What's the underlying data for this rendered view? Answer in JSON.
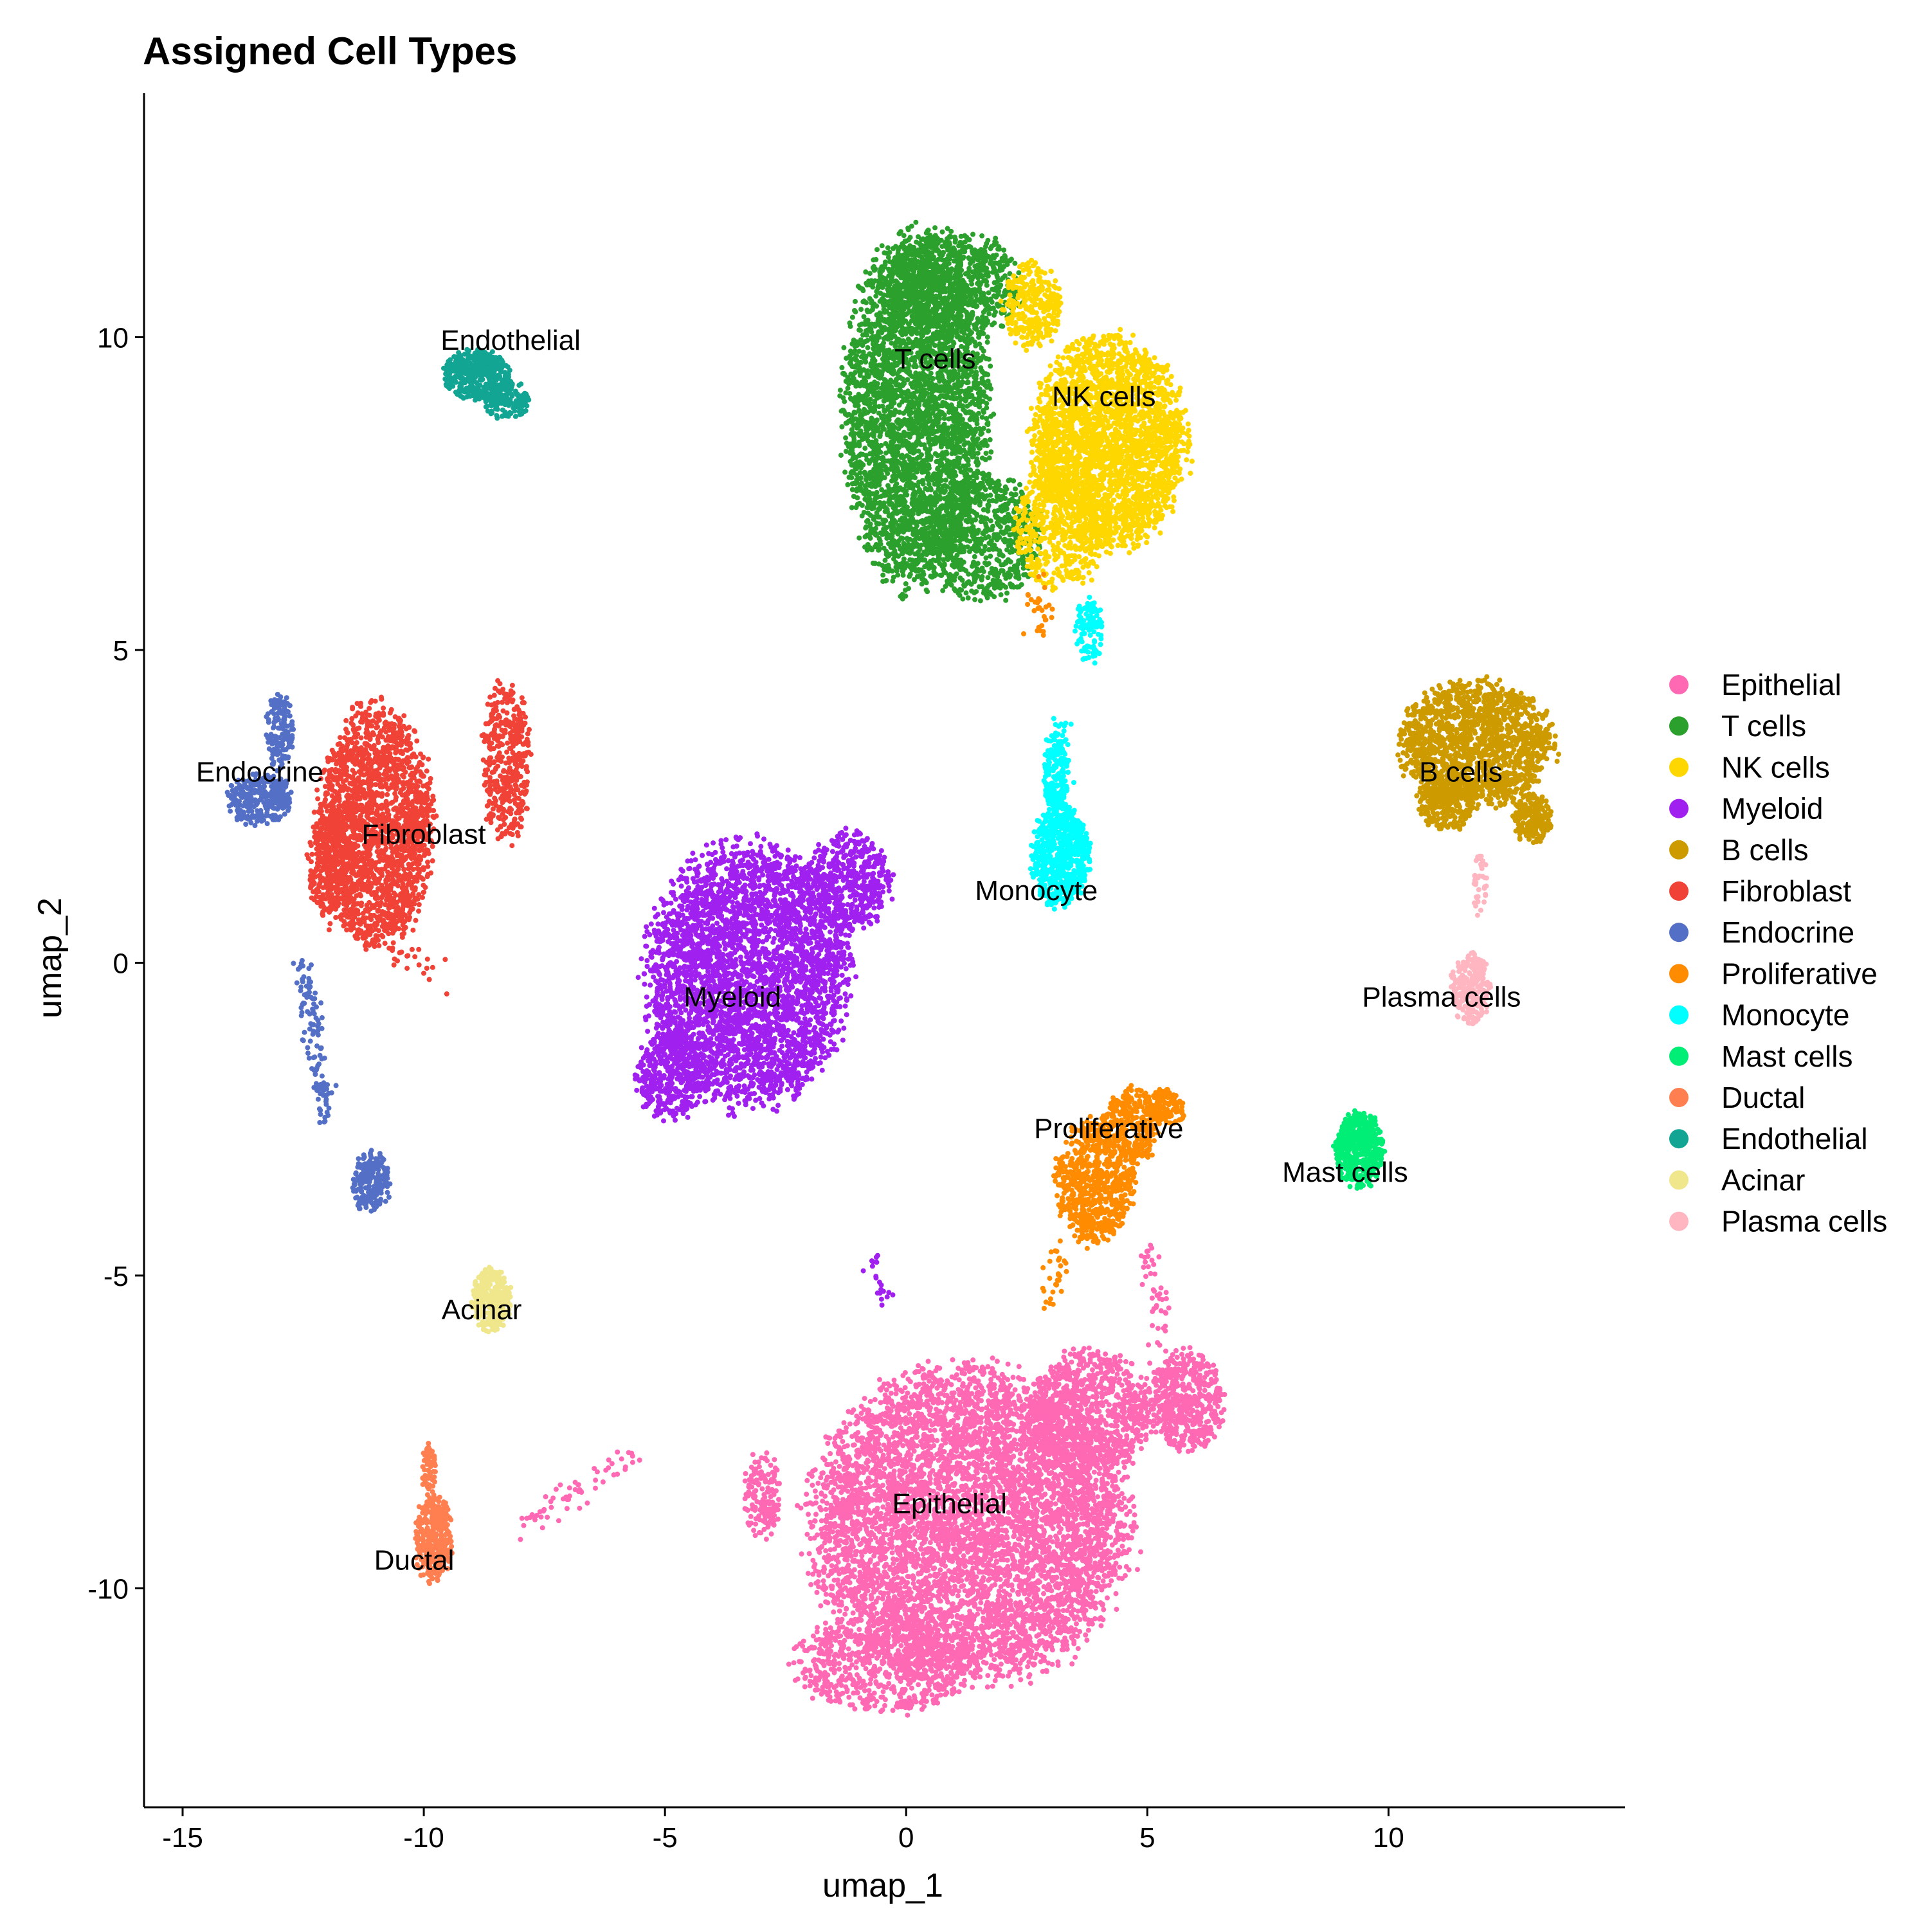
{
  "chart_data": {
    "type": "scatter",
    "title": "Assigned Cell Types",
    "xlabel": "umap_1",
    "ylabel": "umap_2",
    "xlim": [
      -15.8,
      14.9
    ],
    "ylim": [
      -13.5,
      13.9
    ],
    "xticks": [
      -15,
      -10,
      -5,
      0,
      5,
      10
    ],
    "yticks": [
      10,
      5,
      0,
      -5,
      -10
    ],
    "xtick_labels": [
      "-15",
      "-10",
      "-5",
      "0",
      "5",
      "10"
    ],
    "ytick_labels": [
      "10",
      "5",
      "0",
      "-5",
      "-10"
    ],
    "grid": false,
    "legend_position": "right",
    "series": [
      {
        "name": "Epithelial",
        "color": "#FF69B4",
        "label_pos": [
          0.9,
          -8.8
        ],
        "blobs": [
          [
            1.3,
            -9.0,
            3.3,
            2.5,
            6000
          ],
          [
            3.8,
            -7.2,
            1.3,
            1.0,
            900
          ],
          [
            5.8,
            -7.0,
            0.8,
            0.8,
            500
          ],
          [
            -0.5,
            -11.2,
            1.8,
            0.8,
            700
          ],
          [
            -3.0,
            -8.5,
            0.4,
            0.7,
            150
          ]
        ],
        "paths": [
          [
            -8.0,
            -9.0,
            -5.5,
            -7.8,
            60
          ],
          [
            5.0,
            -4.5,
            5.5,
            -7.0,
            60
          ]
        ]
      },
      {
        "name": "T cells",
        "color": "#2CA02C",
        "label_pos": [
          0.6,
          9.5
        ],
        "blobs": [
          [
            0.2,
            8.8,
            1.5,
            2.8,
            3500
          ],
          [
            0.9,
            10.8,
            1.5,
            0.9,
            800
          ],
          [
            1.6,
            6.8,
            1.2,
            1.0,
            700
          ]
        ],
        "paths": []
      },
      {
        "name": "NK cells",
        "color": "#FFD700",
        "label_pos": [
          4.1,
          8.9
        ],
        "blobs": [
          [
            4.2,
            8.3,
            1.6,
            1.7,
            2600
          ],
          [
            3.2,
            7.0,
            1.0,
            1.0,
            500
          ],
          [
            2.6,
            10.5,
            0.6,
            0.7,
            300
          ]
        ],
        "paths": []
      },
      {
        "name": "Myeloid",
        "color": "#A020F0",
        "label_pos": [
          -3.6,
          -0.7
        ],
        "blobs": [
          [
            -3.3,
            -0.2,
            2.1,
            2.1,
            3500
          ],
          [
            -1.2,
            1.3,
            0.9,
            0.8,
            500
          ],
          [
            -4.9,
            -1.8,
            0.7,
            0.7,
            400
          ]
        ],
        "paths": [
          [
            -0.7,
            -4.6,
            -0.4,
            -5.5,
            20
          ]
        ]
      },
      {
        "name": "B cells",
        "color": "#CD9B00",
        "label_pos": [
          11.5,
          2.9
        ],
        "blobs": [
          [
            11.8,
            3.5,
            1.6,
            1.0,
            1500
          ],
          [
            13.0,
            2.3,
            0.4,
            0.4,
            200
          ],
          [
            11.2,
            2.6,
            0.6,
            0.5,
            300
          ]
        ],
        "paths": []
      },
      {
        "name": "Fibroblast",
        "color": "#F04236",
        "label_pos": [
          -10.0,
          1.9
        ],
        "blobs": [
          [
            -11.0,
            2.2,
            1.2,
            1.9,
            2000
          ],
          [
            -8.3,
            3.2,
            0.5,
            1.3,
            400
          ],
          [
            -11.9,
            1.6,
            0.5,
            1.0,
            300
          ]
        ],
        "paths": [
          [
            -11.2,
            0.4,
            -9.6,
            -0.2,
            30
          ]
        ]
      },
      {
        "name": "Endocrine",
        "color": "#5470C6",
        "label_pos": [
          -13.4,
          2.9
        ],
        "blobs": [
          [
            -13.4,
            2.6,
            0.7,
            0.4,
            300
          ],
          [
            -13.0,
            3.7,
            0.3,
            0.6,
            150
          ],
          [
            -11.1,
            -3.5,
            0.4,
            0.5,
            200
          ]
        ],
        "paths": [
          [
            -12.5,
            0.0,
            -12.0,
            -2.5,
            120
          ]
        ]
      },
      {
        "name": "Proliferative",
        "color": "#FF8C00",
        "label_pos": [
          4.2,
          -2.8
        ],
        "blobs": [
          [
            3.9,
            -3.5,
            0.8,
            1.0,
            700
          ],
          [
            4.7,
            -2.6,
            0.6,
            0.6,
            300
          ],
          [
            5.4,
            -2.3,
            0.4,
            0.3,
            120
          ]
        ],
        "paths": [
          [
            3.2,
            -4.6,
            3.0,
            -5.5,
            30
          ],
          [
            2.8,
            5.2,
            2.7,
            6.0,
            30
          ]
        ]
      },
      {
        "name": "Monocyte",
        "color": "#00FFFF",
        "label_pos": [
          2.7,
          1.0
        ],
        "blobs": [
          [
            3.2,
            1.7,
            0.6,
            0.8,
            700
          ],
          [
            3.1,
            3.0,
            0.25,
            0.6,
            150
          ],
          [
            3.8,
            5.3,
            0.3,
            0.5,
            100
          ]
        ],
        "paths": [
          [
            3.2,
            3.8,
            3.2,
            2.5,
            60
          ]
        ]
      },
      {
        "name": "Mast cells",
        "color": "#00EE76",
        "label_pos": [
          9.1,
          -3.5
        ],
        "blobs": [
          [
            9.4,
            -3.0,
            0.5,
            0.6,
            500
          ]
        ],
        "paths": []
      },
      {
        "name": "Ductal",
        "color": "#FF7F50",
        "label_pos": [
          -10.2,
          -9.7
        ],
        "blobs": [
          [
            -9.8,
            -9.2,
            0.4,
            0.7,
            350
          ],
          [
            -9.9,
            -8.1,
            0.15,
            0.4,
            60
          ]
        ],
        "paths": []
      },
      {
        "name": "Endothelial",
        "color": "#12A594",
        "label_pos": [
          -8.2,
          9.8
        ],
        "blobs": [
          [
            -8.9,
            9.4,
            0.7,
            0.4,
            400
          ],
          [
            -8.3,
            9.0,
            0.5,
            0.3,
            150
          ]
        ],
        "paths": []
      },
      {
        "name": "Acinar",
        "color": "#F0E68C",
        "label_pos": [
          -8.8,
          -5.7
        ],
        "blobs": [
          [
            -8.6,
            -5.4,
            0.4,
            0.5,
            300
          ]
        ],
        "paths": []
      },
      {
        "name": "Plasma cells",
        "color": "#FFB6C1",
        "label_pos": [
          11.1,
          -0.7
        ],
        "blobs": [
          [
            11.7,
            -0.4,
            0.4,
            0.6,
            250
          ],
          [
            11.9,
            1.2,
            0.15,
            0.5,
            40
          ]
        ],
        "paths": []
      }
    ]
  }
}
